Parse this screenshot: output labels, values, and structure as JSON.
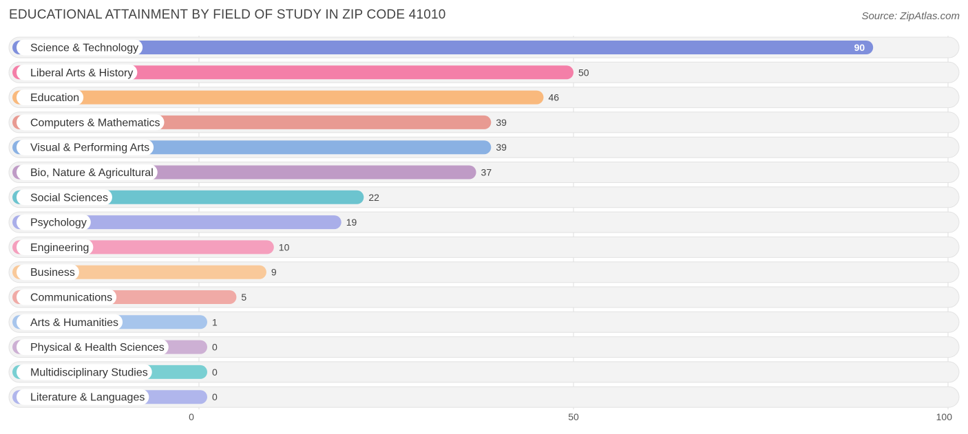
{
  "header": {
    "title": "EDUCATIONAL ATTAINMENT BY FIELD OF STUDY IN ZIP CODE 41010",
    "source": "Source: ZipAtlas.com"
  },
  "chart_data": {
    "type": "bar",
    "orientation": "horizontal",
    "title": "EDUCATIONAL ATTAINMENT BY FIELD OF STUDY IN ZIP CODE 41010",
    "categories": [
      "Science & Technology",
      "Liberal Arts & History",
      "Education",
      "Computers & Mathematics",
      "Visual & Performing Arts",
      "Bio, Nature & Agricultural",
      "Social Sciences",
      "Psychology",
      "Engineering",
      "Business",
      "Communications",
      "Arts & Humanities",
      "Physical & Health Sciences",
      "Multidisciplinary Studies",
      "Literature & Languages"
    ],
    "values": [
      90,
      50,
      46,
      39,
      39,
      37,
      22,
      19,
      10,
      9,
      5,
      1,
      0,
      0,
      0
    ],
    "colors": [
      "#7f8fdc",
      "#f47fa8",
      "#f9b97d",
      "#e89a92",
      "#8ab1e3",
      "#bf9bc6",
      "#6cc4cf",
      "#a9aee9",
      "#f59fbd",
      "#f9c99a",
      "#f0aaa6",
      "#a7c5ec",
      "#cdb0d4",
      "#79cfd2",
      "#b0b6ec"
    ],
    "xlim": [
      0,
      100
    ],
    "xticks": [
      0,
      50,
      100
    ],
    "grid": true
  }
}
